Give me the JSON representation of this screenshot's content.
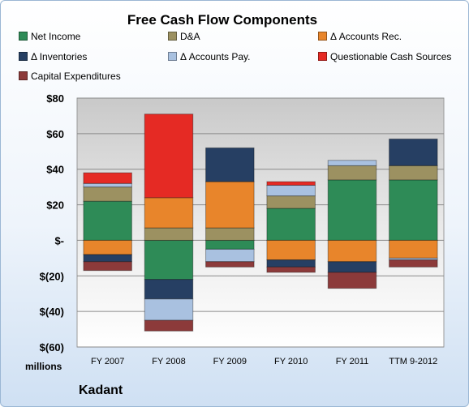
{
  "chart_data": {
    "type": "bar",
    "stacked": true,
    "title": "Free Cash Flow Components",
    "units_label": "millions",
    "company": "Kadant",
    "categories": [
      "FY 2007",
      "FY 2008",
      "FY 2009",
      "FY 2010",
      "FY 2011",
      "TTM 9-2012"
    ],
    "ylim": [
      -60,
      80
    ],
    "yticks": [
      80,
      60,
      40,
      20,
      0,
      -20,
      -40,
      -60
    ],
    "ytick_labels": [
      "$80",
      "$60",
      "$40",
      "$20",
      "$-",
      "$(20)",
      "$(40)",
      "$(60)"
    ],
    "grid": true,
    "legend_position": "top",
    "series": [
      {
        "name": "Net Income",
        "color": "#2e8b57",
        "values": [
          22,
          -22,
          -5,
          18,
          34,
          34
        ]
      },
      {
        "name": "D&A",
        "color": "#9c9161",
        "values": [
          8,
          7,
          7,
          7,
          8,
          8
        ]
      },
      {
        "name": "Δ Accounts Rec.",
        "color": "#e8852b",
        "values": [
          -8,
          17,
          26,
          -11,
          -12,
          -10
        ]
      },
      {
        "name": "Δ Inventories",
        "color": "#263f63",
        "values": [
          -4,
          -11,
          19,
          -4,
          -6,
          15
        ]
      },
      {
        "name": "Δ Accounts Pay.",
        "color": "#a9c1e0",
        "values": [
          2,
          -12,
          -7,
          6,
          3,
          -1
        ]
      },
      {
        "name": "Questionable Cash Sources",
        "color": "#e52a24",
        "values": [
          6,
          47,
          0,
          2,
          0,
          0
        ]
      },
      {
        "name": "Capital Expenditures",
        "color": "#8c3a3a",
        "values": [
          -5,
          -6,
          -3,
          -3,
          -9,
          -4
        ]
      }
    ]
  }
}
